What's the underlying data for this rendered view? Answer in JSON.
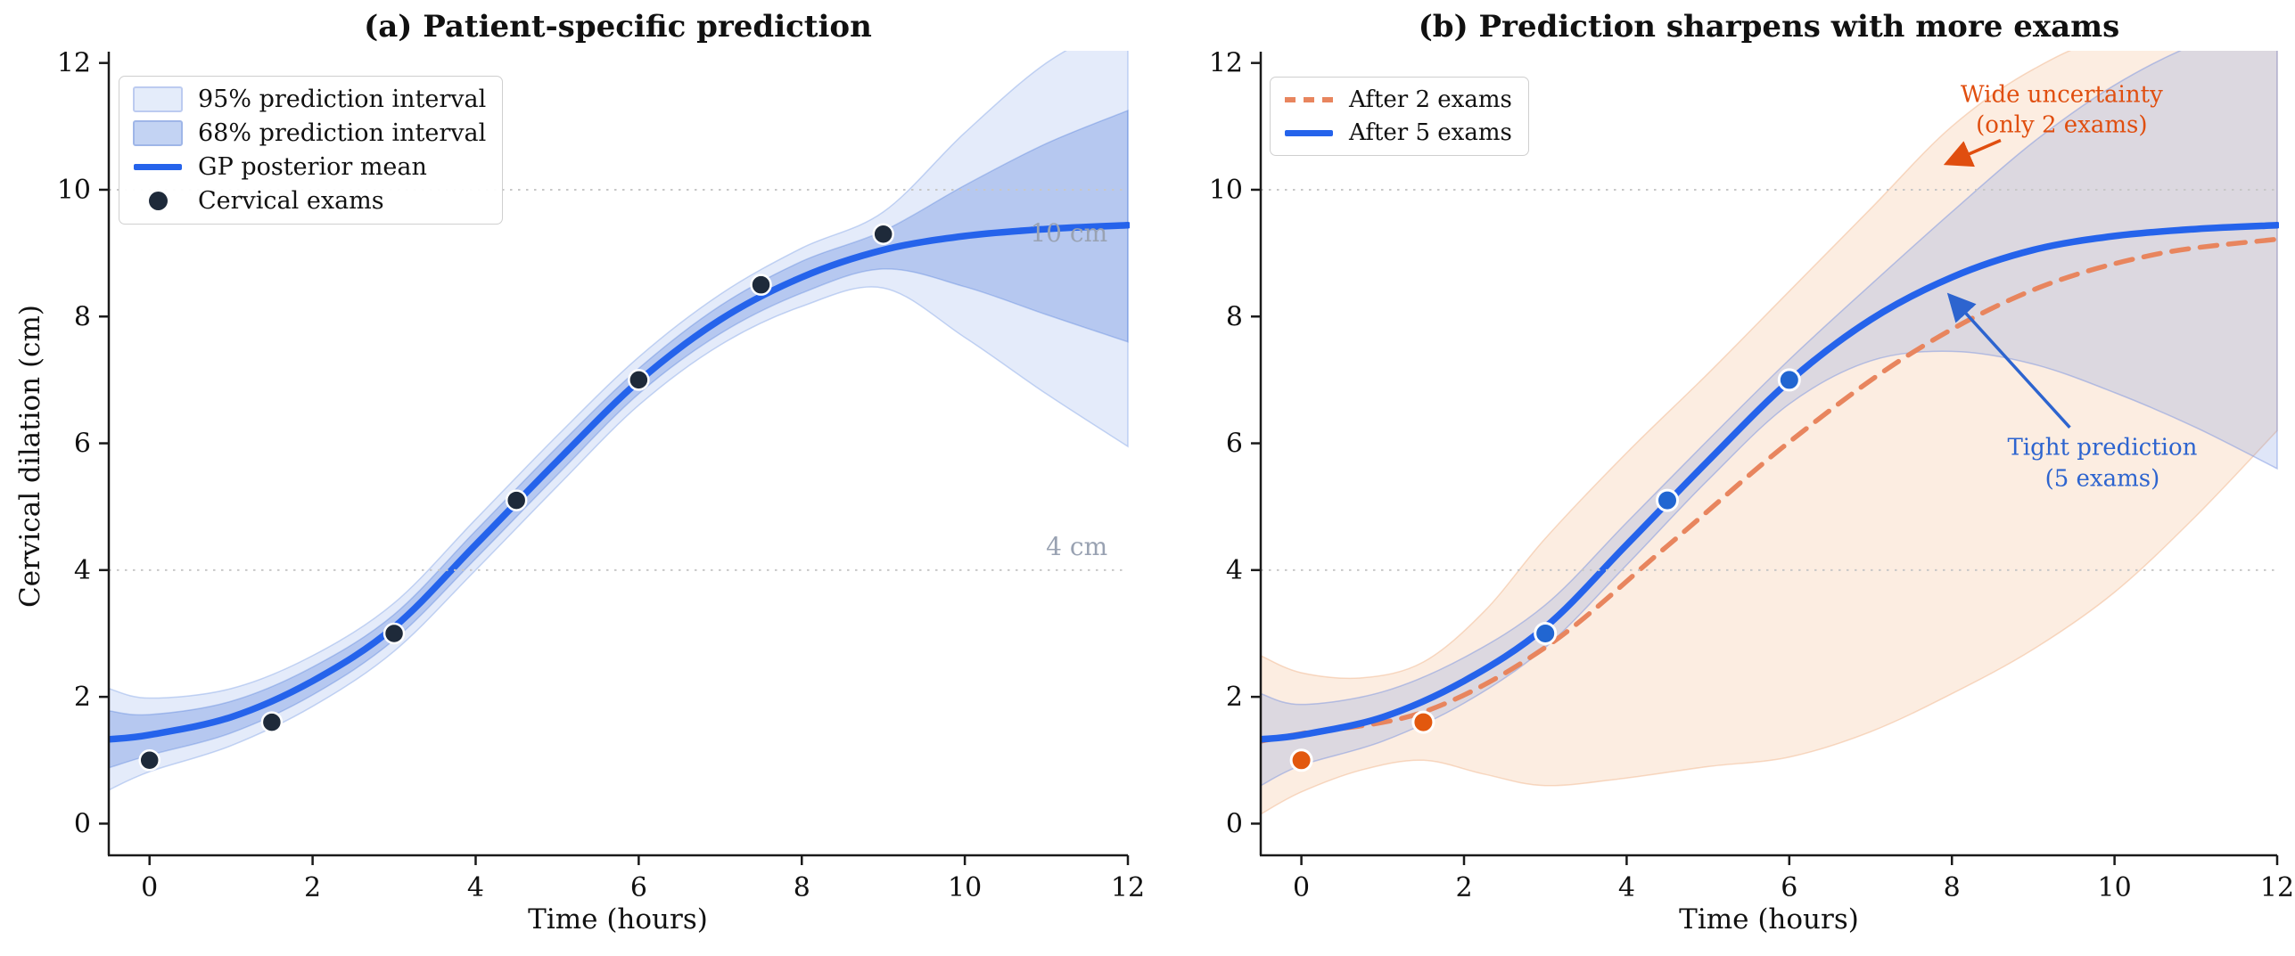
{
  "chart_data": [
    {
      "type": "line",
      "panel": "a",
      "title": "(a) Patient-specific prediction",
      "xlabel": "Time (hours)",
      "ylabel": "Cervical dilation (cm)",
      "xlim": [
        -0.5,
        12
      ],
      "ylim": [
        -0.5,
        12.15
      ],
      "xticks": [
        0,
        2,
        4,
        6,
        8,
        10,
        12
      ],
      "yticks": [
        0,
        2,
        4,
        6,
        8,
        10,
        12
      ],
      "grid": "dotted horizontal reference lines only",
      "legend_position": "upper left",
      "legend": [
        "95% prediction interval",
        "68% prediction interval",
        "GP posterior mean",
        "Cervical exams"
      ],
      "reference_lines": [
        {
          "y": 4,
          "label": "4 cm",
          "label_x": 11.75,
          "label_y": 4.35
        },
        {
          "y": 10,
          "label": "10 cm",
          "label_x": 11.75,
          "label_y": 9.3
        }
      ],
      "series": [
        {
          "name": "95% prediction interval",
          "type": "band",
          "fill": "rgba(130,165,230,0.22)",
          "edge": "rgba(130,165,230,0.45)",
          "upper": [
            [
              -0.5,
              2.13
            ],
            [
              0,
              1.98
            ],
            [
              1,
              2.13
            ],
            [
              2,
              2.65
            ],
            [
              3,
              3.48
            ],
            [
              4,
              4.8
            ],
            [
              5,
              6.12
            ],
            [
              6,
              7.36
            ],
            [
              7,
              8.35
            ],
            [
              8,
              9.08
            ],
            [
              9,
              9.65
            ],
            [
              10,
              10.9
            ],
            [
              11,
              12.0
            ],
            [
              12,
              12.7
            ]
          ],
          "lower": [
            [
              -0.5,
              0.53
            ],
            [
              0,
              0.82
            ],
            [
              1,
              1.23
            ],
            [
              2,
              1.85
            ],
            [
              3,
              2.72
            ],
            [
              4,
              4.0
            ],
            [
              5,
              5.32
            ],
            [
              6,
              6.6
            ],
            [
              7,
              7.55
            ],
            [
              8,
              8.16
            ],
            [
              9,
              8.45
            ],
            [
              10,
              7.67
            ],
            [
              11,
              6.78
            ],
            [
              12,
              5.95
            ]
          ]
        },
        {
          "name": "68% prediction interval",
          "type": "band",
          "fill": "rgba(64,112,215,0.28)",
          "edge": "rgba(64,112,215,0.3)",
          "upper": [
            [
              -0.5,
              1.78
            ],
            [
              0,
              1.72
            ],
            [
              1,
              1.93
            ],
            [
              2,
              2.47
            ],
            [
              3,
              3.3
            ],
            [
              4,
              4.62
            ],
            [
              5,
              5.94
            ],
            [
              6,
              7.18
            ],
            [
              7,
              8.17
            ],
            [
              8,
              8.87
            ],
            [
              9,
              9.35
            ],
            [
              10,
              10.07
            ],
            [
              11,
              10.73
            ],
            [
              12,
              11.25
            ]
          ],
          "lower": [
            [
              -0.5,
              0.88
            ],
            [
              0,
              1.08
            ],
            [
              1,
              1.43
            ],
            [
              2,
              2.03
            ],
            [
              3,
              2.9
            ],
            [
              4,
              4.18
            ],
            [
              5,
              5.5
            ],
            [
              6,
              6.78
            ],
            [
              7,
              7.73
            ],
            [
              8,
              8.37
            ],
            [
              9,
              8.75
            ],
            [
              10,
              8.47
            ],
            [
              11,
              8.03
            ],
            [
              12,
              7.6
            ]
          ]
        },
        {
          "name": "GP posterior mean",
          "type": "line",
          "color": "#2563eb",
          "width": 7.5,
          "points": [
            [
              -0.5,
              1.33
            ],
            [
              0,
              1.4
            ],
            [
              1,
              1.68
            ],
            [
              2,
              2.25
            ],
            [
              3,
              3.1
            ],
            [
              4,
              4.4
            ],
            [
              5,
              5.72
            ],
            [
              6,
              6.98
            ],
            [
              7,
              7.95
            ],
            [
              8,
              8.62
            ],
            [
              9,
              9.05
            ],
            [
              10,
              9.27
            ],
            [
              11,
              9.38
            ],
            [
              12,
              9.44
            ]
          ]
        },
        {
          "name": "Cervical exams",
          "type": "scatter",
          "color": "#1e2a3a",
          "edge": "#ffffff",
          "radius": 11,
          "edge_width": 2.5,
          "points": [
            [
              0,
              1.0
            ],
            [
              1.5,
              1.6
            ],
            [
              3,
              3.0
            ],
            [
              4.5,
              5.1
            ],
            [
              6,
              7.0
            ],
            [
              7.5,
              8.5
            ],
            [
              9,
              9.3
            ]
          ]
        }
      ]
    },
    {
      "type": "line",
      "panel": "b",
      "title": "(b) Prediction sharpens with more exams",
      "xlabel": "Time (hours)",
      "xlim": [
        -0.5,
        12
      ],
      "ylim": [
        -0.5,
        12.15
      ],
      "xticks": [
        0,
        2,
        4,
        6,
        8,
        10,
        12
      ],
      "yticks": [
        0,
        2,
        4,
        6,
        8,
        10,
        12
      ],
      "legend_position": "upper left",
      "legend": [
        "After 2 exams",
        "After 5 exams"
      ],
      "reference_lines": [
        {
          "y": 4,
          "label": ""
        },
        {
          "y": 10,
          "label": ""
        }
      ],
      "series": [
        {
          "name": "After 2 exams 95% band",
          "type": "band",
          "fill": "rgba(243,186,140,0.26)",
          "edge": "rgba(240,175,130,0.45)",
          "upper": [
            [
              -0.5,
              2.65
            ],
            [
              0,
              2.38
            ],
            [
              0.75,
              2.3
            ],
            [
              1.5,
              2.55
            ],
            [
              2.25,
              3.35
            ],
            [
              3,
              4.5
            ],
            [
              4,
              5.85
            ],
            [
              5,
              7.1
            ],
            [
              6,
              8.4
            ],
            [
              7,
              9.7
            ],
            [
              8,
              11.0
            ],
            [
              9,
              11.9
            ],
            [
              10,
              12.4
            ],
            [
              12,
              12.7
            ]
          ],
          "lower": [
            [
              -0.5,
              0.15
            ],
            [
              0,
              0.5
            ],
            [
              0.75,
              0.85
            ],
            [
              1.5,
              1.0
            ],
            [
              2.25,
              0.78
            ],
            [
              3,
              0.6
            ],
            [
              4,
              0.72
            ],
            [
              5,
              0.9
            ],
            [
              6,
              1.05
            ],
            [
              7,
              1.45
            ],
            [
              8,
              2.05
            ],
            [
              9,
              2.75
            ],
            [
              10,
              3.65
            ],
            [
              11,
              4.85
            ],
            [
              12,
              6.2
            ]
          ]
        },
        {
          "name": "After 5 exams 95% band",
          "type": "band",
          "fill": "rgba(110,140,225,0.22)",
          "edge": "rgba(110,140,225,0.45)",
          "upper": [
            [
              -0.5,
              2.05
            ],
            [
              0,
              1.88
            ],
            [
              1,
              2.08
            ],
            [
              2,
              2.62
            ],
            [
              3,
              3.45
            ],
            [
              4,
              4.75
            ],
            [
              5,
              6.05
            ],
            [
              6,
              7.32
            ],
            [
              7,
              8.5
            ],
            [
              8,
              9.65
            ],
            [
              9,
              10.75
            ],
            [
              10,
              11.65
            ],
            [
              11,
              12.3
            ],
            [
              12,
              12.7
            ]
          ],
          "lower": [
            [
              -0.5,
              0.6
            ],
            [
              0,
              0.92
            ],
            [
              1,
              1.3
            ],
            [
              2,
              1.9
            ],
            [
              3,
              2.78
            ],
            [
              4,
              4.08
            ],
            [
              5,
              5.42
            ],
            [
              6,
              6.62
            ],
            [
              7,
              7.3
            ],
            [
              8,
              7.45
            ],
            [
              9,
              7.25
            ],
            [
              10,
              6.8
            ],
            [
              11,
              6.25
            ],
            [
              12,
              5.6
            ]
          ]
        },
        {
          "name": "After 2 exams",
          "type": "line",
          "color": "#e8855e",
          "width": 5.5,
          "dash": "19 13",
          "points": [
            [
              -0.5,
              1.3
            ],
            [
              0,
              1.42
            ],
            [
              1.5,
              1.76
            ],
            [
              3,
              2.78
            ],
            [
              4.5,
              4.38
            ],
            [
              6,
              6.02
            ],
            [
              7.5,
              7.42
            ],
            [
              9,
              8.42
            ],
            [
              10.5,
              8.98
            ],
            [
              12,
              9.22
            ]
          ]
        },
        {
          "name": "After 5 exams",
          "type": "line",
          "color": "#2563eb",
          "width": 7.5,
          "points": [
            [
              -0.5,
              1.33
            ],
            [
              0,
              1.4
            ],
            [
              1,
              1.68
            ],
            [
              2,
              2.25
            ],
            [
              3,
              3.1
            ],
            [
              4,
              4.4
            ],
            [
              5,
              5.72
            ],
            [
              6,
              6.98
            ],
            [
              7,
              7.95
            ],
            [
              8,
              8.62
            ],
            [
              9,
              9.05
            ],
            [
              10,
              9.27
            ],
            [
              11,
              9.38
            ],
            [
              12,
              9.44
            ]
          ]
        },
        {
          "name": "First 2 exams",
          "type": "scatter",
          "color": "#e2580e",
          "edge": "#ffffff",
          "radius": 11.5,
          "edge_width": 3,
          "points": [
            [
              0,
              1.0
            ],
            [
              1.5,
              1.6
            ]
          ]
        },
        {
          "name": "Exams 3-5",
          "type": "scatter",
          "color": "#2166d1",
          "edge": "#ffffff",
          "radius": 11.5,
          "edge_width": 3,
          "points": [
            [
              3,
              3.0
            ],
            [
              4.5,
              5.1
            ],
            [
              6,
              7.0
            ]
          ]
        }
      ],
      "annotations": [
        {
          "id": "wide-uncertainty",
          "lines": [
            "Wide uncertainty",
            "(only 2 exams)"
          ],
          "color": "#e04e0f",
          "text_x": 9.35,
          "text_y": 11.25,
          "arrow_from": [
            8.6,
            10.78
          ],
          "arrow_to": [
            7.95,
            10.42
          ]
        },
        {
          "id": "tight-prediction",
          "lines": [
            "Tight prediction",
            "(5 exams)"
          ],
          "color": "#2d64cf",
          "text_x": 9.85,
          "text_y": 5.68,
          "arrow_from": [
            9.45,
            6.25
          ],
          "arrow_to": [
            7.98,
            8.32
          ]
        }
      ]
    }
  ],
  "colors": {
    "blue": "#2563eb",
    "coral": "#e8855e",
    "navy": "#1e2a3a",
    "orange_dot": "#e2580e",
    "ann_orange": "#e04e0f",
    "ann_blue": "#2d64cf",
    "p95fill": "#e4ecfa",
    "p95edge": "#bccbf0",
    "p68fill": "#c3d3f3",
    "p68edge": "#9fb6e8",
    "gray_label": "#99a2b2",
    "grid": "#c7c7c7",
    "axis": "#1a1a1a"
  }
}
